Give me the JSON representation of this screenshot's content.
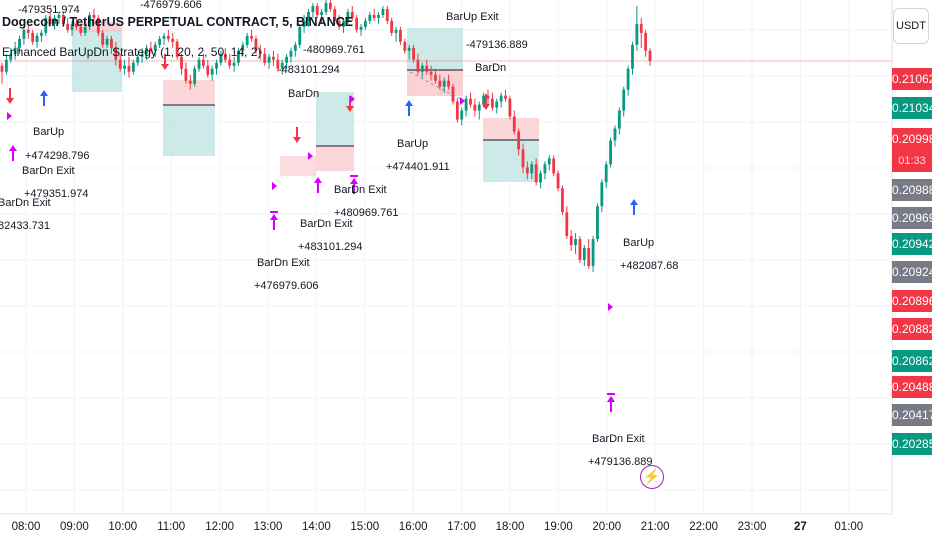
{
  "header": {
    "symbol_line": "Dogecoin / TetherUS PERPETUAL CONTRACT, 5, BINANCE",
    "strategy_line": "Enhanced BarUpDn Strategy (1, 20, 2, 50, 14, 2)"
  },
  "quote_currency": "USDT",
  "time_axis": [
    "08:00",
    "09:00",
    "10:00",
    "11:00",
    "12:00",
    "13:00",
    "14:00",
    "15:00",
    "16:00",
    "17:00",
    "18:00",
    "19:00",
    "20:00",
    "21:00",
    "22:00",
    "23:00",
    "27",
    "01:00"
  ],
  "price_labels": [
    {
      "text": "0.21062",
      "type": "red"
    },
    {
      "text": "0.21034",
      "type": "green"
    },
    {
      "text": "0.20998",
      "type": "red"
    },
    {
      "text": "01:33",
      "type": "red_timer"
    },
    {
      "text": "0.20988",
      "type": "gray"
    },
    {
      "text": "0.20969",
      "type": "gray"
    },
    {
      "text": "0.20942",
      "type": "green"
    },
    {
      "text": "0.20924",
      "type": "gray"
    },
    {
      "text": "0.20896",
      "type": "red"
    },
    {
      "text": "0.20882",
      "type": "red"
    },
    {
      "text": "0.20862",
      "type": "green"
    },
    {
      "text": "0.20488",
      "type": "red"
    },
    {
      "text": "0.20417",
      "type": "gray"
    },
    {
      "text": "0.20285",
      "type": "green"
    }
  ],
  "trade_labels": [
    {
      "text": "-479351.974"
    },
    {
      "text": "-476979.606"
    },
    {
      "text": "BarUp Exit"
    },
    {
      "text": "-479136.889"
    },
    {
      "text": "BarDn"
    },
    {
      "text": "-480969.761"
    },
    {
      "text": "-483101.294"
    },
    {
      "text": "BarDn"
    },
    {
      "text": "BarUp"
    },
    {
      "text": "+474298.796"
    },
    {
      "text": "BarDn Exit"
    },
    {
      "text": "+479351.974"
    },
    {
      "text": "BarDn Exit"
    },
    {
      "text": "82433.731"
    },
    {
      "text": "BarDn Exit"
    },
    {
      "text": "+480969.761"
    },
    {
      "text": "BarDn Exit"
    },
    {
      "text": "+483101.294"
    },
    {
      "text": "BarDn Exit"
    },
    {
      "text": "+476979.606"
    },
    {
      "text": "BarUp"
    },
    {
      "text": "+474401.911"
    },
    {
      "text": "BarUp"
    },
    {
      "text": "+482087.68"
    },
    {
      "text": "BarDn Exit"
    },
    {
      "text": "+479136.889"
    }
  ],
  "colors": {
    "up": "#089981",
    "down": "#f23645",
    "gray": "#787b86",
    "marker_purple": "#d500f9",
    "marker_blue": "#2962ff",
    "profit_zone": "#b2dfdb",
    "loss_zone": "#f9c6c9"
  },
  "chart_data": {
    "type": "candlestick",
    "ylim": [
      0.2024,
      0.211
    ],
    "last_price": 0.20998,
    "candles": [
      [
        0.2099,
        0.20995,
        0.2096,
        0.2098
      ],
      [
        0.2098,
        0.2101,
        0.20975,
        0.21
      ],
      [
        0.21,
        0.2102,
        0.20995,
        0.2101
      ],
      [
        0.2101,
        0.2103,
        0.21,
        0.2102
      ],
      [
        0.2102,
        0.2104,
        0.2101,
        0.21035
      ],
      [
        0.21035,
        0.21055,
        0.21025,
        0.2105
      ],
      [
        0.2105,
        0.2106,
        0.21035,
        0.21045
      ],
      [
        0.21045,
        0.2105,
        0.21025,
        0.2103
      ],
      [
        0.2103,
        0.21045,
        0.2102,
        0.2104
      ],
      [
        0.2104,
        0.2105,
        0.2103,
        0.21045
      ],
      [
        0.21045,
        0.21075,
        0.2104,
        0.2107
      ],
      [
        0.2107,
        0.2108,
        0.21055,
        0.2106
      ],
      [
        0.2106,
        0.21075,
        0.2105,
        0.2107
      ],
      [
        0.2107,
        0.2108,
        0.2106,
        0.21075
      ],
      [
        0.21075,
        0.2108,
        0.21055,
        0.2106
      ],
      [
        0.2106,
        0.2107,
        0.21045,
        0.2105
      ],
      [
        0.2105,
        0.21065,
        0.2104,
        0.2106
      ],
      [
        0.2106,
        0.2107,
        0.2105,
        0.21055
      ],
      [
        0.21055,
        0.2106,
        0.2104,
        0.21045
      ],
      [
        0.21045,
        0.2106,
        0.2104,
        0.21055
      ],
      [
        0.21055,
        0.2108,
        0.2105,
        0.21075
      ],
      [
        0.21075,
        0.21085,
        0.2106,
        0.2107
      ],
      [
        0.2107,
        0.21075,
        0.2104,
        0.21045
      ],
      [
        0.21045,
        0.2105,
        0.2102,
        0.21025
      ],
      [
        0.21025,
        0.2104,
        0.2102,
        0.21035
      ],
      [
        0.21035,
        0.2104,
        0.2101,
        0.2102
      ],
      [
        0.2102,
        0.2103,
        0.2099,
        0.21
      ],
      [
        0.21,
        0.2101,
        0.2098,
        0.20985
      ],
      [
        0.20985,
        0.21,
        0.20975,
        0.2099
      ],
      [
        0.2099,
        0.21005,
        0.2097,
        0.2098
      ],
      [
        0.2098,
        0.21,
        0.20975,
        0.20995
      ],
      [
        0.20995,
        0.2101,
        0.2099,
        0.21005
      ],
      [
        0.21005,
        0.2102,
        0.20995,
        0.2101
      ],
      [
        0.2101,
        0.21025,
        0.21,
        0.2102
      ],
      [
        0.2102,
        0.2103,
        0.2101,
        0.21015
      ],
      [
        0.21015,
        0.2103,
        0.21005,
        0.21025
      ],
      [
        0.21025,
        0.2104,
        0.2102,
        0.21035
      ],
      [
        0.21035,
        0.21045,
        0.21025,
        0.2104
      ],
      [
        0.2104,
        0.2105,
        0.2103,
        0.21035
      ],
      [
        0.21035,
        0.21045,
        0.2102,
        0.2103
      ],
      [
        0.2103,
        0.21035,
        0.21,
        0.21005
      ],
      [
        0.21005,
        0.2101,
        0.20975,
        0.20985
      ],
      [
        0.20985,
        0.20995,
        0.2096,
        0.20965
      ],
      [
        0.20965,
        0.20975,
        0.2095,
        0.2096
      ],
      [
        0.2096,
        0.2099,
        0.20955,
        0.20985
      ],
      [
        0.20985,
        0.21005,
        0.2098,
        0.21
      ],
      [
        0.21,
        0.2101,
        0.20985,
        0.2099
      ],
      [
        0.2099,
        0.21,
        0.2097,
        0.20975
      ],
      [
        0.20975,
        0.2099,
        0.20965,
        0.20985
      ],
      [
        0.20985,
        0.21,
        0.20975,
        0.20995
      ],
      [
        0.20995,
        0.21015,
        0.2099,
        0.2101
      ],
      [
        0.2101,
        0.2102,
        0.20995,
        0.21
      ],
      [
        0.21,
        0.2101,
        0.20985,
        0.2099
      ],
      [
        0.2099,
        0.21005,
        0.2098,
        0.20995
      ],
      [
        0.20995,
        0.2102,
        0.2099,
        0.21015
      ],
      [
        0.21015,
        0.2103,
        0.21005,
        0.21025
      ],
      [
        0.21025,
        0.21045,
        0.2102,
        0.2104
      ],
      [
        0.2104,
        0.2105,
        0.2103,
        0.21035
      ],
      [
        0.21035,
        0.2104,
        0.2101,
        0.21015
      ],
      [
        0.21015,
        0.21025,
        0.21,
        0.2101
      ],
      [
        0.2101,
        0.2102,
        0.2099,
        0.20995
      ],
      [
        0.20995,
        0.2101,
        0.20985,
        0.21005
      ],
      [
        0.21005,
        0.21015,
        0.2099,
        0.21
      ],
      [
        0.21,
        0.2101,
        0.2098,
        0.20985
      ],
      [
        0.20985,
        0.21,
        0.20975,
        0.20995
      ],
      [
        0.20995,
        0.2101,
        0.20985,
        0.21005
      ],
      [
        0.21005,
        0.2102,
        0.20995,
        0.21015
      ],
      [
        0.21015,
        0.2103,
        0.21005,
        0.21025
      ],
      [
        0.21025,
        0.2106,
        0.2102,
        0.21055
      ],
      [
        0.21055,
        0.21075,
        0.21045,
        0.21065
      ],
      [
        0.21065,
        0.21085,
        0.21055,
        0.2108
      ],
      [
        0.2108,
        0.21095,
        0.2107,
        0.2109
      ],
      [
        0.2109,
        0.21095,
        0.2107,
        0.21075
      ],
      [
        0.21075,
        0.21085,
        0.2106,
        0.2108
      ],
      [
        0.2108,
        0.211,
        0.21075,
        0.21095
      ],
      [
        0.21095,
        0.21105,
        0.2108,
        0.21085
      ],
      [
        0.21085,
        0.2109,
        0.2106,
        0.21065
      ],
      [
        0.21065,
        0.21075,
        0.2105,
        0.21055
      ],
      [
        0.21055,
        0.2107,
        0.21045,
        0.21065
      ],
      [
        0.21065,
        0.21085,
        0.2106,
        0.2108
      ],
      [
        0.2108,
        0.2109,
        0.21065,
        0.2107
      ],
      [
        0.2107,
        0.21075,
        0.21045,
        0.2105
      ],
      [
        0.2105,
        0.2106,
        0.2104,
        0.21055
      ],
      [
        0.21055,
        0.2107,
        0.2105,
        0.21065
      ],
      [
        0.21065,
        0.2108,
        0.2106,
        0.21075
      ],
      [
        0.21075,
        0.21085,
        0.21065,
        0.2107
      ],
      [
        0.2107,
        0.2108,
        0.2106,
        0.21075
      ],
      [
        0.21075,
        0.2109,
        0.2107,
        0.21085
      ],
      [
        0.21085,
        0.2109,
        0.2106,
        0.21065
      ],
      [
        0.21065,
        0.2107,
        0.2104,
        0.21045
      ],
      [
        0.21045,
        0.21055,
        0.2103,
        0.2105
      ],
      [
        0.2105,
        0.21055,
        0.21025,
        0.2103
      ],
      [
        0.2103,
        0.21035,
        0.2101,
        0.21015
      ],
      [
        0.21015,
        0.21025,
        0.21,
        0.2102
      ],
      [
        0.2102,
        0.21025,
        0.20995,
        0.21
      ],
      [
        0.21,
        0.2101,
        0.20975,
        0.2098
      ],
      [
        0.2098,
        0.20995,
        0.2097,
        0.2099
      ],
      [
        0.2099,
        0.21,
        0.20975,
        0.2098
      ],
      [
        0.2098,
        0.2099,
        0.20965,
        0.20975
      ],
      [
        0.20975,
        0.20985,
        0.2096,
        0.20965
      ],
      [
        0.20965,
        0.20975,
        0.2095,
        0.20955
      ],
      [
        0.20955,
        0.2097,
        0.20945,
        0.20965
      ],
      [
        0.20965,
        0.20975,
        0.2095,
        0.20955
      ],
      [
        0.20955,
        0.2096,
        0.20925,
        0.2093
      ],
      [
        0.2093,
        0.20935,
        0.20895,
        0.209
      ],
      [
        0.209,
        0.2092,
        0.2089,
        0.20915
      ],
      [
        0.20915,
        0.2094,
        0.20905,
        0.20935
      ],
      [
        0.20935,
        0.20945,
        0.2092,
        0.20925
      ],
      [
        0.20925,
        0.20935,
        0.20905,
        0.20915
      ],
      [
        0.20915,
        0.2093,
        0.209,
        0.20925
      ],
      [
        0.20925,
        0.20945,
        0.2092,
        0.2094
      ],
      [
        0.2094,
        0.2095,
        0.20925,
        0.20935
      ],
      [
        0.20935,
        0.20945,
        0.20915,
        0.2092
      ],
      [
        0.2092,
        0.20935,
        0.2091,
        0.2093
      ],
      [
        0.2093,
        0.20945,
        0.2092,
        0.2094
      ],
      [
        0.2094,
        0.2095,
        0.2093,
        0.20935
      ],
      [
        0.20935,
        0.2094,
        0.209,
        0.20905
      ],
      [
        0.20905,
        0.20915,
        0.20875,
        0.2088
      ],
      [
        0.2088,
        0.20885,
        0.2084,
        0.2085
      ],
      [
        0.2085,
        0.2086,
        0.2081,
        0.2082
      ],
      [
        0.2082,
        0.2083,
        0.208,
        0.2081
      ],
      [
        0.2081,
        0.2083,
        0.208,
        0.20825
      ],
      [
        0.20825,
        0.20835,
        0.2079,
        0.20795
      ],
      [
        0.20795,
        0.20815,
        0.20785,
        0.2081
      ],
      [
        0.2081,
        0.2083,
        0.208,
        0.20825
      ],
      [
        0.20825,
        0.2084,
        0.20815,
        0.20835
      ],
      [
        0.20835,
        0.2084,
        0.20805,
        0.2081
      ],
      [
        0.2081,
        0.20815,
        0.2078,
        0.20785
      ],
      [
        0.20785,
        0.2079,
        0.2074,
        0.20745
      ],
      [
        0.20745,
        0.20755,
        0.207,
        0.20705
      ],
      [
        0.20705,
        0.20715,
        0.2068,
        0.2069
      ],
      [
        0.2069,
        0.2071,
        0.20675,
        0.207
      ],
      [
        0.207,
        0.20705,
        0.2066,
        0.20665
      ],
      [
        0.20665,
        0.2069,
        0.20655,
        0.20685
      ],
      [
        0.20685,
        0.207,
        0.2065,
        0.20655
      ],
      [
        0.20655,
        0.20705,
        0.20645,
        0.207
      ],
      [
        0.207,
        0.2076,
        0.20695,
        0.20755
      ],
      [
        0.20755,
        0.208,
        0.20745,
        0.20795
      ],
      [
        0.20795,
        0.2083,
        0.20785,
        0.20825
      ],
      [
        0.20825,
        0.2087,
        0.2082,
        0.20865
      ],
      [
        0.20865,
        0.2089,
        0.20855,
        0.20885
      ],
      [
        0.20885,
        0.2092,
        0.20875,
        0.20915
      ],
      [
        0.20915,
        0.20955,
        0.20905,
        0.2095
      ],
      [
        0.2095,
        0.2099,
        0.2094,
        0.20985
      ],
      [
        0.20985,
        0.2103,
        0.20975,
        0.21025
      ],
      [
        0.21025,
        0.2109,
        0.21015,
        0.2106
      ],
      [
        0.2106,
        0.2107,
        0.2102,
        0.21045
      ],
      [
        0.21045,
        0.2105,
        0.21005,
        0.21015
      ],
      [
        0.21015,
        0.2102,
        0.2099,
        0.20998
      ]
    ]
  }
}
